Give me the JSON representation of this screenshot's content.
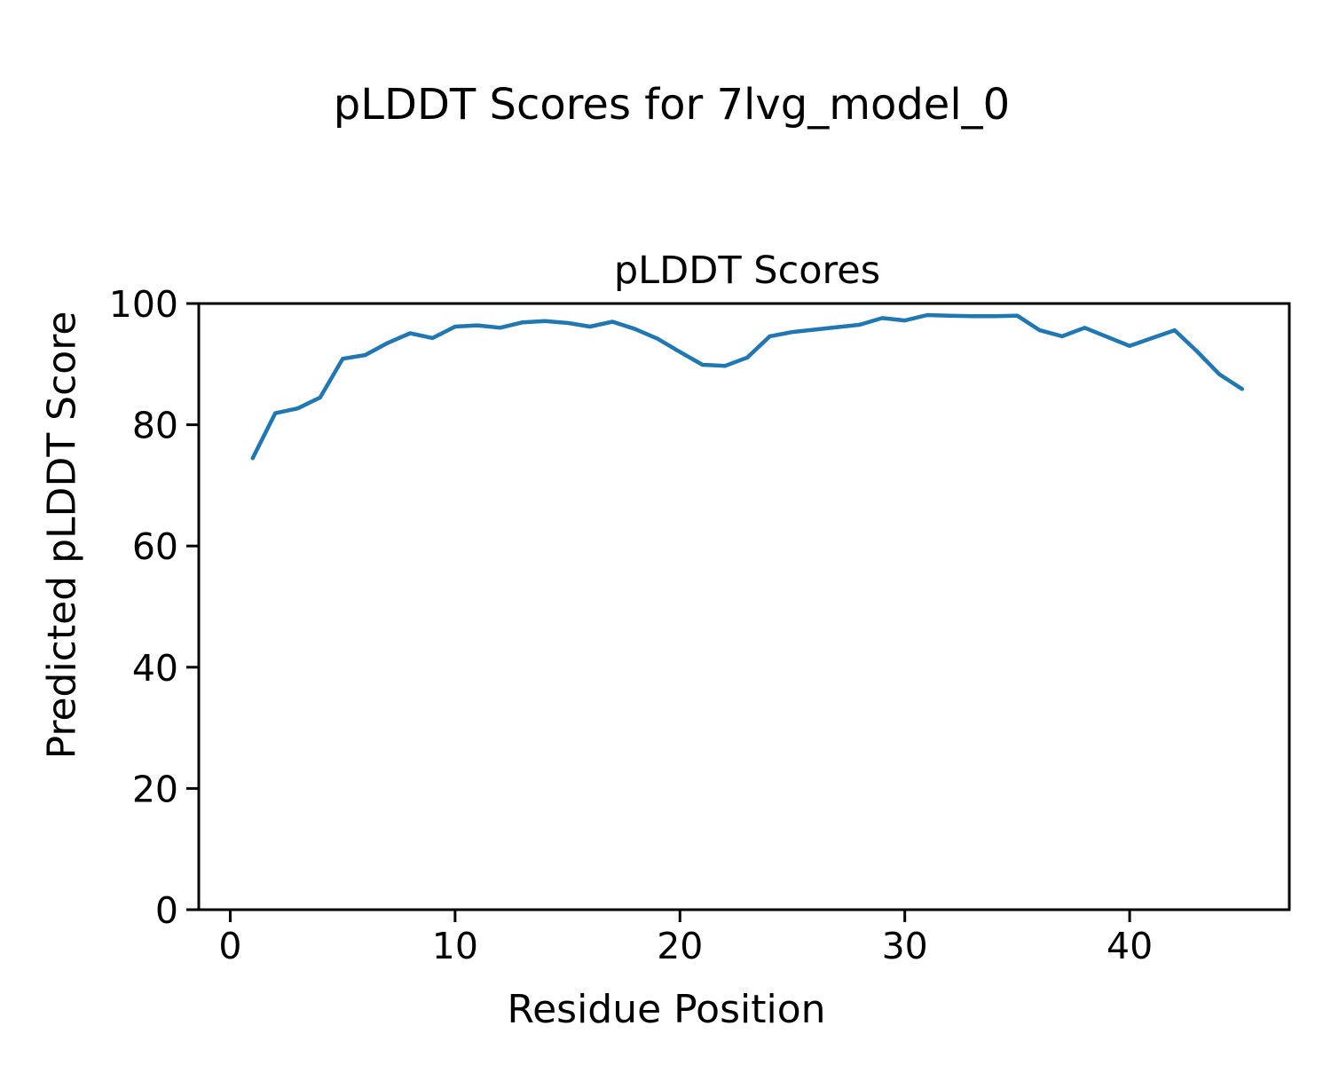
{
  "figure": {
    "suptitle": "pLDDT Scores for 7lvg_model_0"
  },
  "chart_data": {
    "type": "line",
    "title": "pLDDT Scores",
    "xlabel": "Residue Position",
    "ylabel": "Predicted pLDDT Score",
    "series": [
      {
        "name": "pLDDT",
        "x": [
          1,
          2,
          3,
          4,
          5,
          6,
          7,
          8,
          9,
          10,
          11,
          12,
          13,
          14,
          15,
          16,
          17,
          18,
          19,
          20,
          21,
          22,
          23,
          24,
          25,
          26,
          27,
          28,
          29,
          30,
          31,
          32,
          33,
          34,
          35,
          36,
          37,
          38,
          39,
          40,
          41,
          42,
          43,
          44,
          45
        ],
        "y": [
          74.5,
          81.9,
          82.7,
          84.5,
          90.9,
          91.5,
          93.5,
          95.1,
          94.3,
          96.2,
          96.4,
          96.0,
          96.9,
          97.1,
          96.8,
          96.2,
          97.0,
          95.8,
          94.2,
          92.0,
          89.9,
          89.7,
          91.1,
          94.6,
          95.3,
          95.7,
          96.1,
          96.5,
          97.6,
          97.2,
          98.1,
          98.0,
          97.9,
          97.9,
          98.0,
          95.6,
          94.6,
          96.0,
          94.5,
          93.0,
          94.3,
          95.6,
          92.1,
          88.3,
          85.9
        ]
      }
    ],
    "x_ticks": [
      0,
      10,
      20,
      30,
      40
    ],
    "y_ticks": [
      0,
      20,
      40,
      60,
      80,
      100
    ],
    "xlim": [
      -1.4,
      47.1
    ],
    "ylim": [
      0,
      100
    ],
    "grid": false,
    "legend_position": "none",
    "line_color": "#1f77b4",
    "axis_color": "#000000",
    "background_color": "#ffffff"
  }
}
